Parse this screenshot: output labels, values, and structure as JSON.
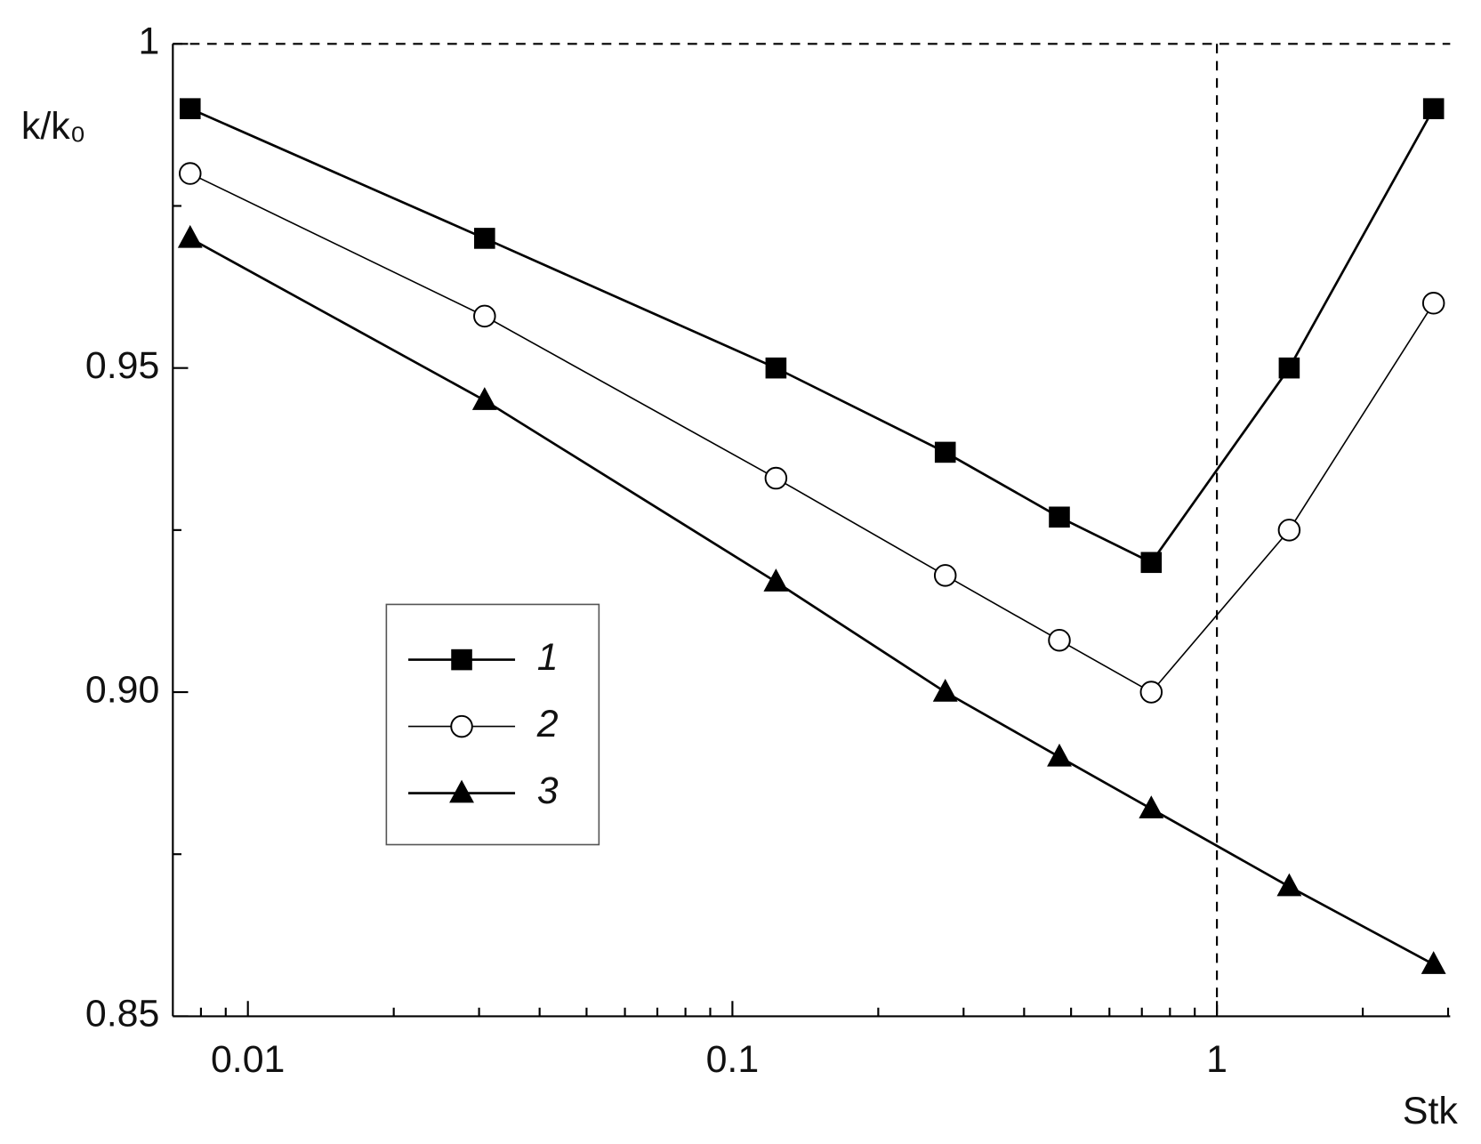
{
  "chart_data": {
    "type": "line",
    "x_label": "Stk",
    "y_label": "k/k₀",
    "x": [
      0.0076,
      0.0308,
      0.123,
      0.275,
      0.473,
      0.732,
      1.41,
      2.8
    ],
    "series": [
      {
        "name": "1",
        "color": "#000000",
        "marker": "square",
        "values": [
          0.99,
          0.97,
          0.95,
          0.937,
          0.927,
          0.92,
          0.95,
          0.99
        ]
      },
      {
        "name": "2",
        "color": "#000000",
        "marker": "circle",
        "values": [
          0.98,
          0.958,
          0.933,
          0.918,
          0.908,
          0.9,
          0.925,
          0.96
        ]
      },
      {
        "name": "3",
        "color": "#000000",
        "marker": "triangle",
        "values": [
          0.97,
          0.945,
          0.917,
          0.9,
          0.89,
          0.882,
          0.87,
          0.858
        ]
      }
    ],
    "xscale": "log",
    "xlim": [
      0.007,
      3.03
    ],
    "xticks": [
      0.01,
      0.1,
      1
    ],
    "ylim": [
      0.85,
      1
    ],
    "yticks": [
      0.85,
      {
        "value": 0.9,
        "label": "0.90"
      },
      0.95,
      1
    ],
    "reference_lines": {
      "x": 1,
      "y": 1
    },
    "legend": "lower-left"
  }
}
